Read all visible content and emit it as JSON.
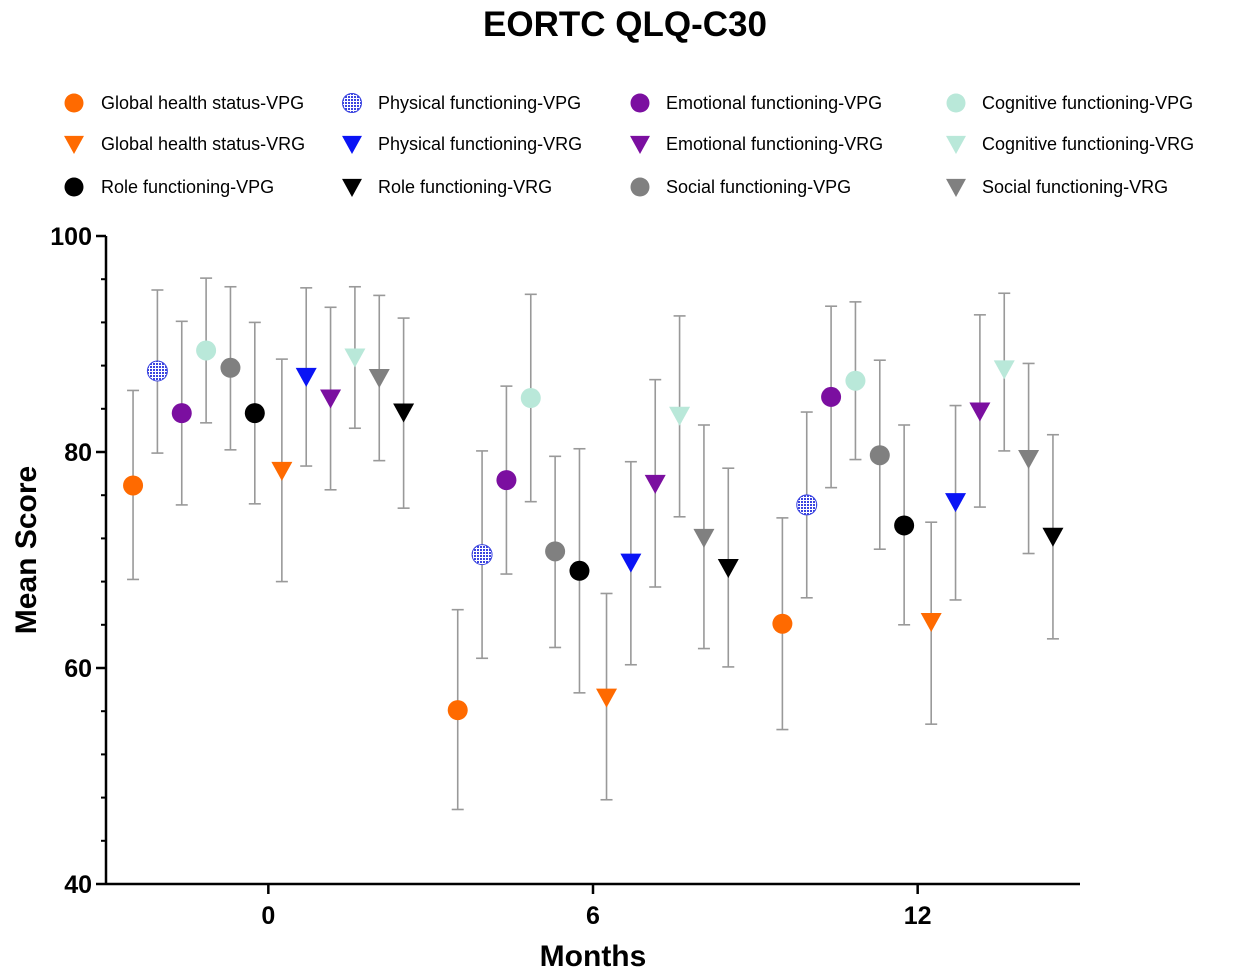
{
  "chart_data": {
    "type": "scatter",
    "title": "EORTC QLQ-C30",
    "xlabel": "Months",
    "ylabel": "Mean Score",
    "xlim": [
      -3,
      15
    ],
    "ylim": [
      40,
      100
    ],
    "x_ticks": [
      0,
      6,
      12
    ],
    "x_tick_labels": [
      "0",
      "6",
      "12"
    ],
    "y_ticks": [
      40,
      60,
      80,
      100
    ],
    "y_tick_labels": [
      "40",
      "60",
      "80",
      "100"
    ],
    "y_minor_step": 4,
    "grid": false,
    "legend_position": "top",
    "error_bar_color": "#999999",
    "series": [
      {
        "name": "Global health status-VPG",
        "color": "#FF6A00",
        "marker": "circle",
        "x": [
          -2.5,
          3.5,
          9.5
        ],
        "y": [
          76.9,
          56.1,
          64.1
        ],
        "err_low": [
          68.2,
          46.9,
          54.3
        ],
        "err_high": [
          85.7,
          65.4,
          73.9
        ]
      },
      {
        "name": "Physical functioning-VPG",
        "color": "#3B44E0",
        "marker": "hatched-circle",
        "x": [
          -2.05,
          3.95,
          9.95
        ],
        "y": [
          87.5,
          70.5,
          75.1
        ],
        "err_low": [
          79.9,
          60.9,
          66.5
        ],
        "err_high": [
          95.0,
          80.1,
          83.7
        ]
      },
      {
        "name": "Emotional functioning-VPG",
        "color": "#7B0FA0",
        "marker": "circle",
        "x": [
          -1.6,
          4.4,
          10.4
        ],
        "y": [
          83.6,
          77.4,
          85.1
        ],
        "err_low": [
          75.1,
          68.7,
          76.7
        ],
        "err_high": [
          92.1,
          86.1,
          93.5
        ]
      },
      {
        "name": "Cognitive functioning-VPG",
        "color": "#B9E8D9",
        "marker": "circle",
        "x": [
          -1.15,
          4.85,
          10.85
        ],
        "y": [
          89.4,
          85.0,
          86.6
        ],
        "err_low": [
          82.7,
          75.4,
          79.3
        ],
        "err_high": [
          96.1,
          94.6,
          93.9
        ]
      },
      {
        "name": "Global health status-VRG",
        "color": "#FF6A00",
        "marker": "triangle-down",
        "x": [
          0.25,
          6.25,
          12.25
        ],
        "y": [
          78.3,
          57.3,
          64.3
        ],
        "err_low": [
          68.0,
          47.8,
          54.8
        ],
        "err_high": [
          88.6,
          66.9,
          73.5
        ]
      },
      {
        "name": "Physical functioning-VRG",
        "color": "#0A14F5",
        "marker": "triangle-down",
        "x": [
          0.7,
          6.7,
          12.7
        ],
        "y": [
          87.0,
          69.8,
          75.4
        ],
        "err_low": [
          78.7,
          60.3,
          66.3
        ],
        "err_high": [
          95.2,
          79.1,
          84.3
        ]
      },
      {
        "name": "Emotional functioning-VRG",
        "color": "#7B0FA0",
        "marker": "triangle-down",
        "x": [
          1.15,
          7.15,
          13.15
        ],
        "y": [
          85.0,
          77.1,
          83.8
        ],
        "err_low": [
          76.5,
          67.5,
          74.9
        ],
        "err_high": [
          93.4,
          86.7,
          92.7
        ]
      },
      {
        "name": "Cognitive functioning-VRG",
        "color": "#B9E8D9",
        "marker": "triangle-down",
        "x": [
          1.6,
          7.6,
          13.6
        ],
        "y": [
          88.8,
          83.4,
          87.7
        ],
        "err_low": [
          82.2,
          74.0,
          80.1
        ],
        "err_high": [
          95.3,
          92.6,
          94.7
        ]
      },
      {
        "name": "Role functioning-VPG",
        "color": "#000000",
        "marker": "circle",
        "x": [
          -0.25,
          5.75,
          11.75
        ],
        "y": [
          83.6,
          69.0,
          73.2
        ],
        "err_low": [
          75.2,
          57.7,
          64.0
        ],
        "err_high": [
          92.0,
          80.3,
          82.5
        ]
      },
      {
        "name": "Role functioning-VRG",
        "color": "#000000",
        "marker": "triangle-down",
        "x": [
          2.5,
          8.5,
          14.5
        ],
        "y": [
          83.7,
          69.3,
          72.2
        ],
        "err_low": [
          74.8,
          60.1,
          62.7
        ],
        "err_high": [
          92.4,
          78.5,
          81.6
        ]
      },
      {
        "name": "Social functioning-VPG",
        "color": "#808080",
        "marker": "circle",
        "x": [
          -0.7,
          5.3,
          11.3
        ],
        "y": [
          87.8,
          70.8,
          79.7
        ],
        "err_low": [
          80.2,
          61.9,
          71.0
        ],
        "err_high": [
          95.3,
          79.6,
          88.5
        ]
      },
      {
        "name": "Social functioning-VRG",
        "color": "#808080",
        "marker": "triangle-down",
        "x": [
          2.05,
          8.05,
          14.05
        ],
        "y": [
          86.9,
          72.1,
          79.4
        ],
        "err_low": [
          79.2,
          61.8,
          70.6
        ],
        "err_high": [
          94.5,
          82.5,
          88.2
        ]
      }
    ]
  }
}
